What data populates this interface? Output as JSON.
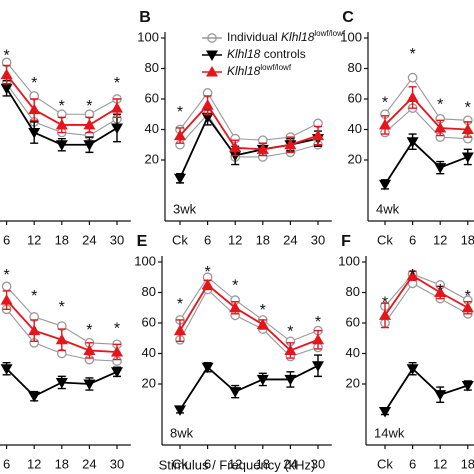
{
  "figure": {
    "xlabel": "Stimulus / Frequency (kHz)"
  },
  "chart_data": [
    {
      "type": "line",
      "panel": null,
      "age": null,
      "categories": [
        null,
        "6",
        "12",
        "18",
        "24",
        "30"
      ],
      "ylim": [
        -20,
        100
      ],
      "series": [
        {
          "color": "#999999",
          "marker": "circle",
          "values": [
            null,
            84,
            62,
            50,
            50,
            60
          ]
        },
        {
          "color": "#999999",
          "marker": "circle",
          "values": [
            null,
            70,
            45,
            38,
            36,
            47
          ]
        },
        {
          "color": "#000000",
          "marker": "triangle-down",
          "values": [
            null,
            67,
            38,
            30,
            30,
            41
          ],
          "errors": [
            null,
            5,
            7,
            4,
            5,
            9
          ]
        },
        {
          "color": "#e8141b",
          "marker": "triangle-up",
          "values": [
            null,
            76,
            53,
            43,
            43,
            54
          ],
          "errors": [
            null,
            6,
            7,
            5,
            5,
            6
          ]
        }
      ],
      "annotations": [
        {
          "category": "6",
          "y": 90,
          "text": "*"
        },
        {
          "category": "12",
          "y": 72,
          "text": "*"
        },
        {
          "category": "18",
          "y": 57,
          "text": "*"
        },
        {
          "category": "24",
          "y": 57,
          "text": "*"
        },
        {
          "category": "30",
          "y": 72,
          "text": "*"
        }
      ]
    },
    {
      "type": "line",
      "panel": "B",
      "age": "3wk",
      "categories": [
        "Ck",
        "6",
        "12",
        "18",
        "24",
        "30"
      ],
      "ylim": [
        -20,
        100
      ],
      "yticks": [
        20,
        40,
        60,
        80,
        100
      ],
      "series": [
        {
          "name": [
            {
              "text": "Individual "
            },
            {
              "text": "Klhl18",
              "italic": true
            },
            {
              "text": "lowf/lowf",
              "sup": true
            }
          ],
          "color": "#999999",
          "marker": "circle",
          "values": [
            40,
            64,
            34,
            33,
            35,
            44
          ]
        },
        {
          "color": "#999999",
          "marker": "circle",
          "values": [
            30,
            50,
            22,
            22,
            25,
            30
          ]
        },
        {
          "name": [
            {
              "text": "Klhl18",
              "italic": true
            },
            {
              "text": " controls"
            }
          ],
          "color": "#000000",
          "marker": "triangle-down",
          "values": [
            8,
            48,
            23,
            27,
            30,
            34
          ],
          "errors": [
            3,
            5,
            6,
            4,
            4,
            5
          ]
        },
        {
          "name": [
            {
              "text": "Klhl18",
              "italic": true
            },
            {
              "text": "lowf/lowf",
              "sup": true
            }
          ],
          "color": "#e8141b",
          "marker": "triangle-up",
          "values": [
            36,
            56,
            28,
            27,
            30,
            36
          ],
          "errors": [
            5,
            6,
            5,
            4,
            5,
            6
          ]
        }
      ],
      "annotations": [
        {
          "category": "Ck",
          "y": 53,
          "text": "*"
        }
      ]
    },
    {
      "type": "line",
      "panel": "C",
      "age": "4wk",
      "categories": [
        "Ck",
        "6",
        "12",
        "18"
      ],
      "ylim": [
        -20,
        100
      ],
      "yticks": [
        20,
        40,
        60,
        80,
        100
      ],
      "series": [
        {
          "color": "#999999",
          "marker": "circle",
          "values": [
            50,
            74,
            47,
            46
          ]
        },
        {
          "color": "#999999",
          "marker": "circle",
          "values": [
            38,
            54,
            35,
            34
          ]
        },
        {
          "color": "#000000",
          "marker": "triangle-down",
          "values": [
            4,
            32,
            15,
            22
          ],
          "errors": [
            3,
            5,
            4,
            5
          ]
        },
        {
          "color": "#e8141b",
          "marker": "triangle-up",
          "values": [
            43,
            61,
            41,
            40
          ],
          "errors": [
            6,
            7,
            5,
            5
          ]
        }
      ],
      "annotations": [
        {
          "category": "Ck",
          "y": 59,
          "text": "*"
        },
        {
          "category": "6",
          "y": 91,
          "text": "*"
        },
        {
          "category": "12",
          "y": 58,
          "text": "*"
        },
        {
          "category": "18",
          "y": 56,
          "text": "*"
        }
      ]
    },
    {
      "type": "line",
      "panel": null,
      "age": null,
      "categories": [
        null,
        "6",
        "12",
        "18",
        "24",
        "30"
      ],
      "ylim": [
        -20,
        100
      ],
      "series": [
        {
          "color": "#999999",
          "marker": "circle",
          "values": [
            null,
            84,
            64,
            58,
            47,
            46
          ]
        },
        {
          "color": "#999999",
          "marker": "circle",
          "values": [
            null,
            69,
            47,
            40,
            36,
            35
          ]
        },
        {
          "color": "#000000",
          "marker": "triangle-down",
          "values": [
            null,
            30,
            12,
            21,
            20,
            28
          ],
          "errors": [
            null,
            4,
            3,
            4,
            4,
            3
          ]
        },
        {
          "color": "#e8141b",
          "marker": "triangle-up",
          "values": [
            null,
            75,
            55,
            49,
            42,
            41
          ],
          "errors": [
            null,
            6,
            7,
            7,
            5,
            5
          ]
        }
      ],
      "annotations": [
        {
          "category": "6",
          "y": 93,
          "text": "*"
        },
        {
          "category": "12",
          "y": 79,
          "text": "*"
        },
        {
          "category": "18",
          "y": 72,
          "text": "*"
        },
        {
          "category": "24",
          "y": 57,
          "text": "*"
        },
        {
          "category": "30",
          "y": 58,
          "text": "*"
        }
      ]
    },
    {
      "type": "line",
      "panel": "E",
      "age": "8wk",
      "categories": [
        "Ck",
        "6",
        "12",
        "18",
        "24",
        "30"
      ],
      "ylim": [
        -20,
        100
      ],
      "yticks": [
        20,
        40,
        60,
        80,
        100
      ],
      "series": [
        {
          "color": "#999999",
          "marker": "circle",
          "values": [
            62,
            90,
            75,
            62,
            48,
            55
          ]
        },
        {
          "color": "#999999",
          "marker": "circle",
          "values": [
            49,
            82,
            65,
            56,
            38,
            44
          ]
        },
        {
          "color": "#000000",
          "marker": "triangle-down",
          "values": [
            3,
            31,
            15,
            23,
            23,
            32
          ],
          "errors": [
            2,
            3,
            4,
            4,
            5,
            7
          ]
        },
        {
          "color": "#e8141b",
          "marker": "triangle-up",
          "values": [
            55,
            85,
            70,
            59,
            42,
            49
          ],
          "errors": [
            7,
            3,
            4,
            3,
            5,
            6
          ]
        }
      ],
      "annotations": [
        {
          "category": "Ck",
          "y": 74,
          "text": "*"
        },
        {
          "category": "6",
          "y": 95,
          "text": "*"
        },
        {
          "category": "12",
          "y": 86,
          "text": "*"
        },
        {
          "category": "18",
          "y": 70,
          "text": "*"
        },
        {
          "category": "24",
          "y": 56,
          "text": "*"
        },
        {
          "category": "30",
          "y": 62,
          "text": "*"
        }
      ]
    },
    {
      "type": "line",
      "panel": "F",
      "age": "14wk",
      "categories": [
        "Ck",
        "6",
        "12",
        "18"
      ],
      "ylim": [
        -20,
        100
      ],
      "yticks": [
        20,
        40,
        60,
        80,
        100
      ],
      "series": [
        {
          "color": "#999999",
          "marker": "circle",
          "values": [
            71,
            92,
            85,
            75
          ]
        },
        {
          "color": "#999999",
          "marker": "circle",
          "values": [
            60,
            86,
            76,
            66
          ]
        },
        {
          "color": "#000000",
          "marker": "triangle-down",
          "values": [
            2,
            30,
            13,
            19
          ],
          "errors": [
            2,
            4,
            5,
            3
          ]
        },
        {
          "color": "#e8141b",
          "marker": "triangle-up",
          "values": [
            65,
            91,
            80,
            70
          ],
          "errors": [
            8,
            3,
            4,
            4
          ]
        }
      ],
      "annotations": [
        {
          "category": "Ck",
          "y": 75,
          "text": "*"
        },
        {
          "category": "6",
          "y": 93,
          "text": "*"
        },
        {
          "category": "12",
          "y": 83,
          "text": "*"
        },
        {
          "category": "18",
          "y": 79,
          "text": "*"
        }
      ]
    }
  ]
}
